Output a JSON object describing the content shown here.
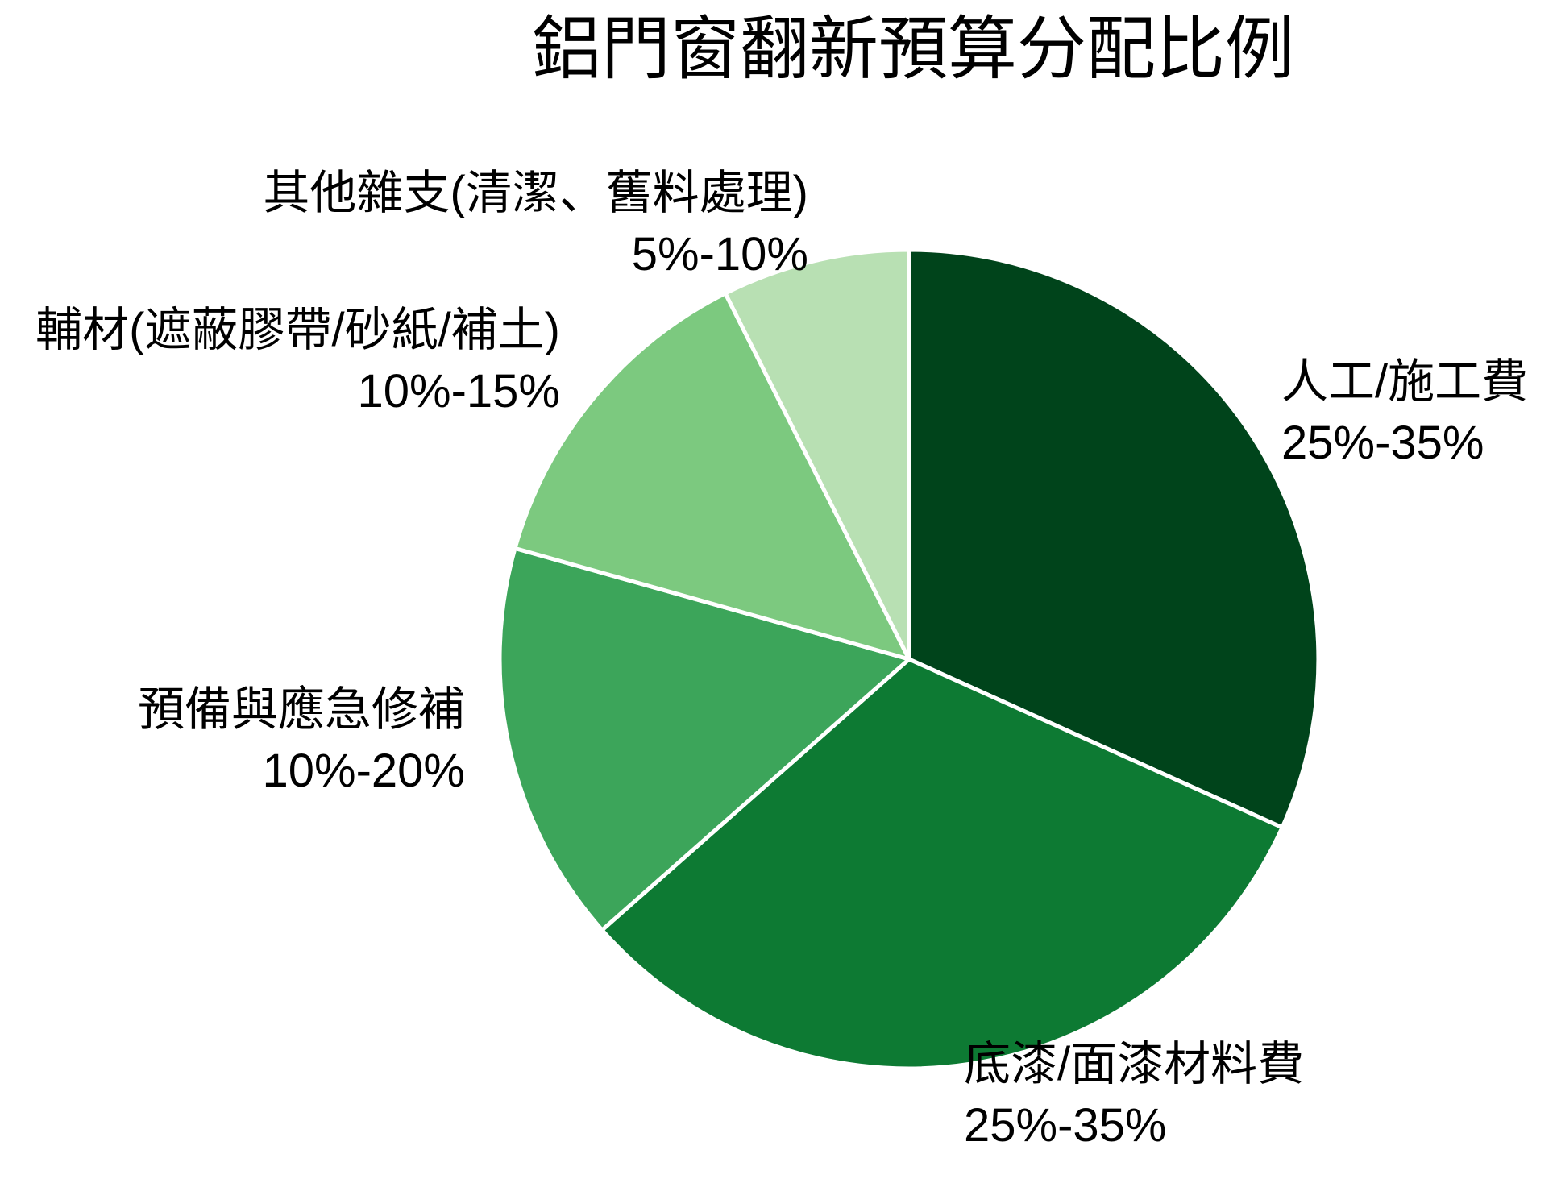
{
  "background_color": "#ffffff",
  "text_color": "#000000",
  "chart_data": {
    "type": "pie",
    "title": "鋁門窗翻新預算分配比例",
    "legend": "none",
    "label_position": "outside",
    "start_angle_deg": 0,
    "direction": "clockwise",
    "divider_color": "#ffffff",
    "slices": [
      {
        "id": "labor",
        "label": "人工/施工費",
        "range": "25%-35%",
        "value": 30,
        "share_pct": 31.7,
        "color": "#00441b"
      },
      {
        "id": "paint",
        "label": "底漆/面漆材料費",
        "range": "25%-35%",
        "value": 30,
        "share_pct": 31.7,
        "color": "#0d7a33"
      },
      {
        "id": "reserve",
        "label": "預備與應急修補",
        "range": "10%-20%",
        "value": 15,
        "share_pct": 15.9,
        "color": "#3ca55a"
      },
      {
        "id": "aux-materials",
        "label": "輔材(遮蔽膠帶/砂紙/補土)",
        "range": "10%-15%",
        "value": 12.5,
        "share_pct": 13.2,
        "color": "#7cc97f"
      },
      {
        "id": "misc",
        "label": "其他雜支(清潔、舊料處理)",
        "range": "5%-10%",
        "value": 7,
        "share_pct": 7.4,
        "color": "#b8e0b3"
      }
    ]
  }
}
